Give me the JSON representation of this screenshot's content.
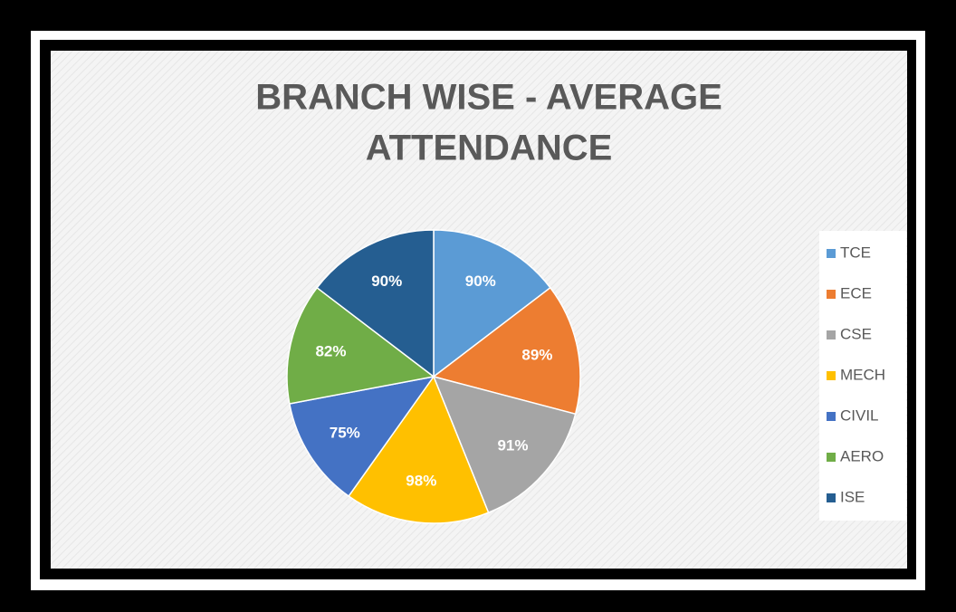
{
  "chart_data": {
    "type": "pie",
    "title": [
      "BRANCH WISE - AVERAGE",
      "ATTENDANCE"
    ],
    "categories": [
      "TCE",
      "ECE",
      "CSE",
      "MECH",
      "CIVIL",
      "AERO",
      "ISE"
    ],
    "values": [
      90,
      89,
      91,
      98,
      75,
      82,
      90
    ],
    "value_labels": [
      "90%",
      "89%",
      "91%",
      "98%",
      "75%",
      "82%",
      "90%"
    ],
    "colors": [
      "#5b9bd5",
      "#ed7d31",
      "#a5a5a5",
      "#ffc000",
      "#4472c4",
      "#70ad47",
      "#255e91"
    ],
    "legend": "right"
  }
}
